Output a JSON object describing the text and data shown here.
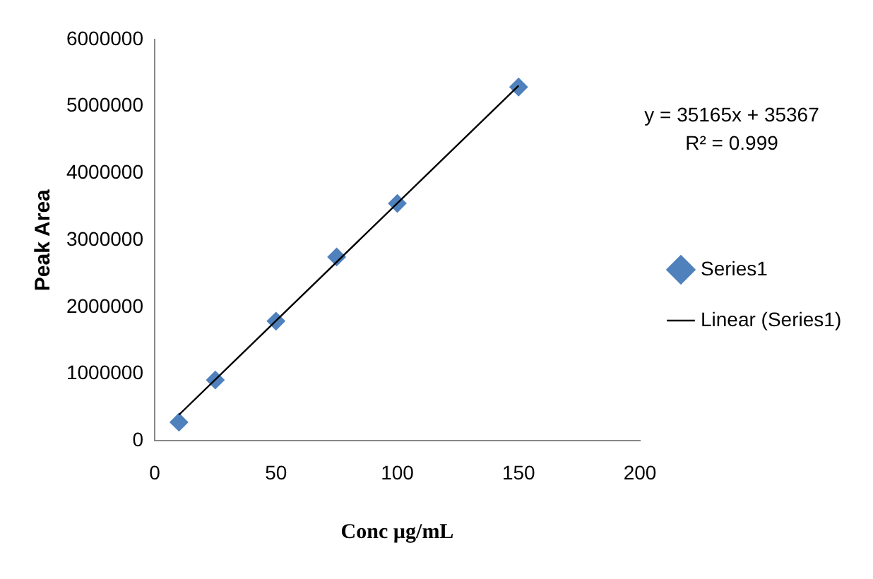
{
  "chart_data": {
    "type": "scatter",
    "xlabel": "Conc µg/mL",
    "ylabel": "Peak Area",
    "x": [
      10,
      25,
      50,
      75,
      100,
      150
    ],
    "series": [
      {
        "name": "Series1",
        "color": "#4f81bd",
        "marker": "diamond",
        "values": [
          280000,
          910000,
          1790000,
          2750000,
          3550000,
          5290000
        ]
      },
      {
        "name": "Linear (Series1)",
        "type": "line",
        "color": "#000000",
        "marker": "none",
        "x": [
          10,
          150
        ],
        "values": [
          390000,
          5310000
        ]
      }
    ],
    "xlim": [
      0,
      200
    ],
    "xticks": [
      0,
      50,
      100,
      150,
      200
    ],
    "ylim": [
      0,
      6000000
    ],
    "yticks": [
      0,
      1000000,
      2000000,
      3000000,
      4000000,
      5000000,
      6000000
    ],
    "grid": false,
    "legend": "right",
    "annotations": [
      "y = 35165x + 35367",
      "R² = 0.999"
    ]
  }
}
